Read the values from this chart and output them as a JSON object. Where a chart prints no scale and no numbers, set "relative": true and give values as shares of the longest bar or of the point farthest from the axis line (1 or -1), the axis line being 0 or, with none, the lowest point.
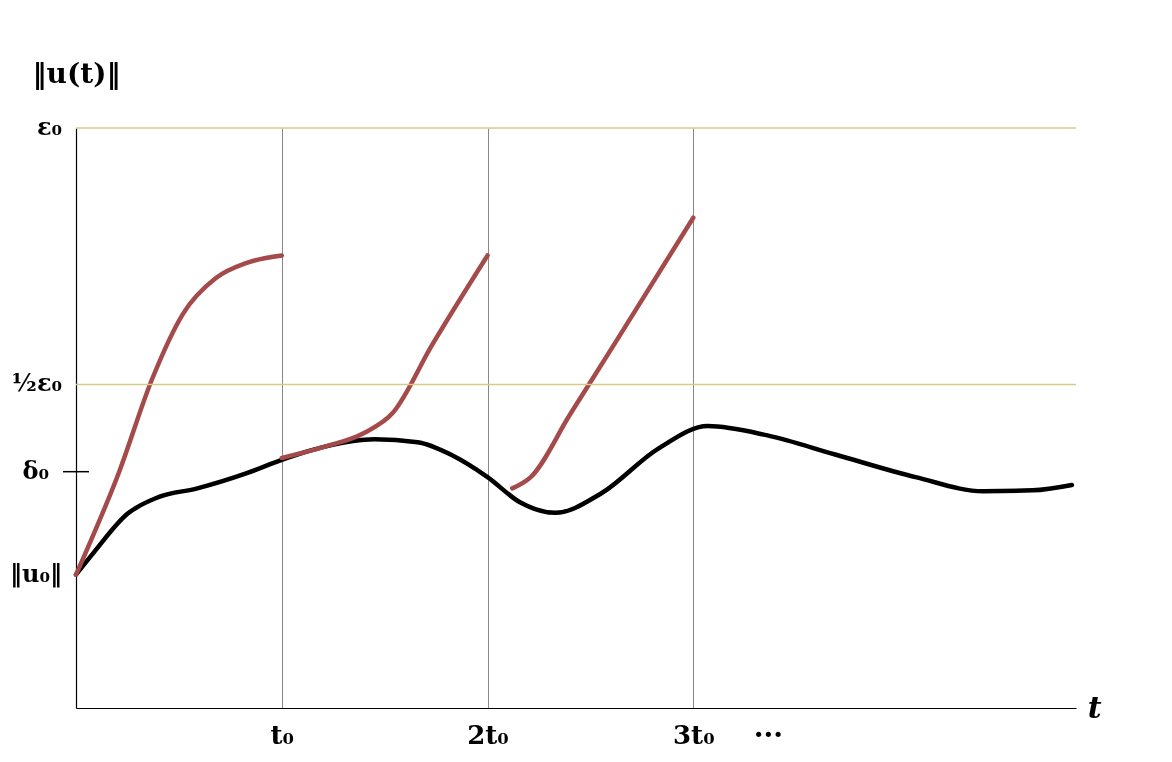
{
  "chart_data": {
    "type": "line",
    "relative": true,
    "xlabel": "t",
    "ylabel": "‖u(t)‖",
    "xlim": [
      0,
      4.86
    ],
    "xticks": [
      {
        "value": 1,
        "label": "t₀"
      },
      {
        "value": 2,
        "label": "2t₀"
      },
      {
        "value": 3,
        "label": "3t₀"
      }
    ],
    "grid": "x",
    "annotations": [
      "···",
      {
        "text": "‖u₀‖",
        "x": 0,
        "y": 0.272
      }
    ],
    "ref_lines": [
      {
        "axis": "y",
        "value": 1.183,
        "label": "ε₀",
        "color": "#d8c98a"
      },
      {
        "axis": "y",
        "value": 0.66,
        "label": "½ε₀",
        "color": "#d8c98a"
      },
      {
        "axis": "y",
        "value": 0.482,
        "label": "δ₀"
      }
    ],
    "series": [
      {
        "color": "#000000",
        "x": [
          0,
          0.086,
          0.25,
          0.4,
          0.59,
          0.83,
          1.0,
          1.21,
          1.45,
          1.66,
          1.83,
          2.0,
          2.16,
          2.33,
          2.55,
          2.83,
          3.07,
          3.36,
          3.69,
          4.08,
          4.41,
          4.65,
          4.84
        ],
        "values": [
          0.272,
          0.317,
          0.396,
          0.43,
          0.448,
          0.479,
          0.506,
          0.533,
          0.548,
          0.542,
          0.515,
          0.471,
          0.419,
          0.398,
          0.437,
          0.529,
          0.575,
          0.556,
          0.517,
          0.471,
          0.442,
          0.444,
          0.455
        ]
      },
      {
        "color": "#a54a4a",
        "x": [
          0,
          0.21,
          0.37,
          0.52,
          0.68,
          0.83,
          1.0
        ],
        "values": [
          0.272,
          0.482,
          0.671,
          0.804,
          0.877,
          0.908,
          0.923
        ]
      },
      {
        "color": "#a54a4a",
        "x": [
          1.0,
          1.21,
          1.4,
          1.54,
          1.73,
          2.0
        ],
        "values": [
          0.51,
          0.533,
          0.561,
          0.602,
          0.74,
          0.923
        ]
      },
      {
        "color": "#a54a4a",
        "x": [
          2.12,
          2.21,
          2.4,
          2.64,
          3.0
        ],
        "values": [
          0.448,
          0.471,
          0.598,
          0.758,
          1.0
        ]
      }
    ]
  }
}
